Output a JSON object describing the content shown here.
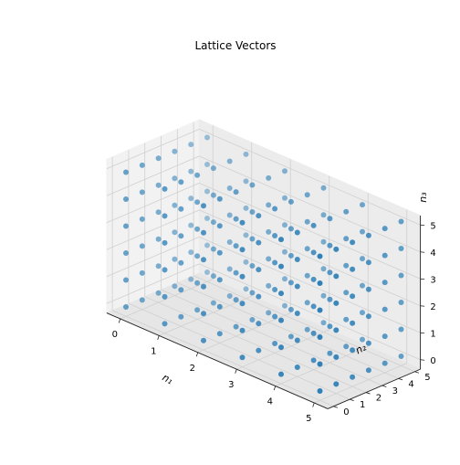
{
  "chart_data": {
    "type": "scatter",
    "projection": "3d",
    "title": "Lattice Vectors",
    "xlabel": "n₁",
    "ylabel": "n₂",
    "zlabel": "n₃",
    "xlim": [
      0,
      5
    ],
    "ylim": [
      0,
      5
    ],
    "zlim": [
      0,
      5
    ],
    "xticks": [
      "0",
      "1",
      "2",
      "3",
      "4",
      "5"
    ],
    "yticks": [
      "0",
      "1",
      "2",
      "3",
      "4",
      "5"
    ],
    "zticks": [
      "0",
      "1",
      "2",
      "3",
      "4",
      "5"
    ],
    "grid": true,
    "point_grid": {
      "n1": [
        0,
        1,
        2,
        3,
        4,
        5
      ],
      "n2": [
        0,
        1,
        2,
        3,
        4,
        5
      ],
      "n3": [
        0,
        1,
        2,
        3,
        4,
        5
      ]
    },
    "colors": {
      "points": "#1f77b4"
    }
  }
}
